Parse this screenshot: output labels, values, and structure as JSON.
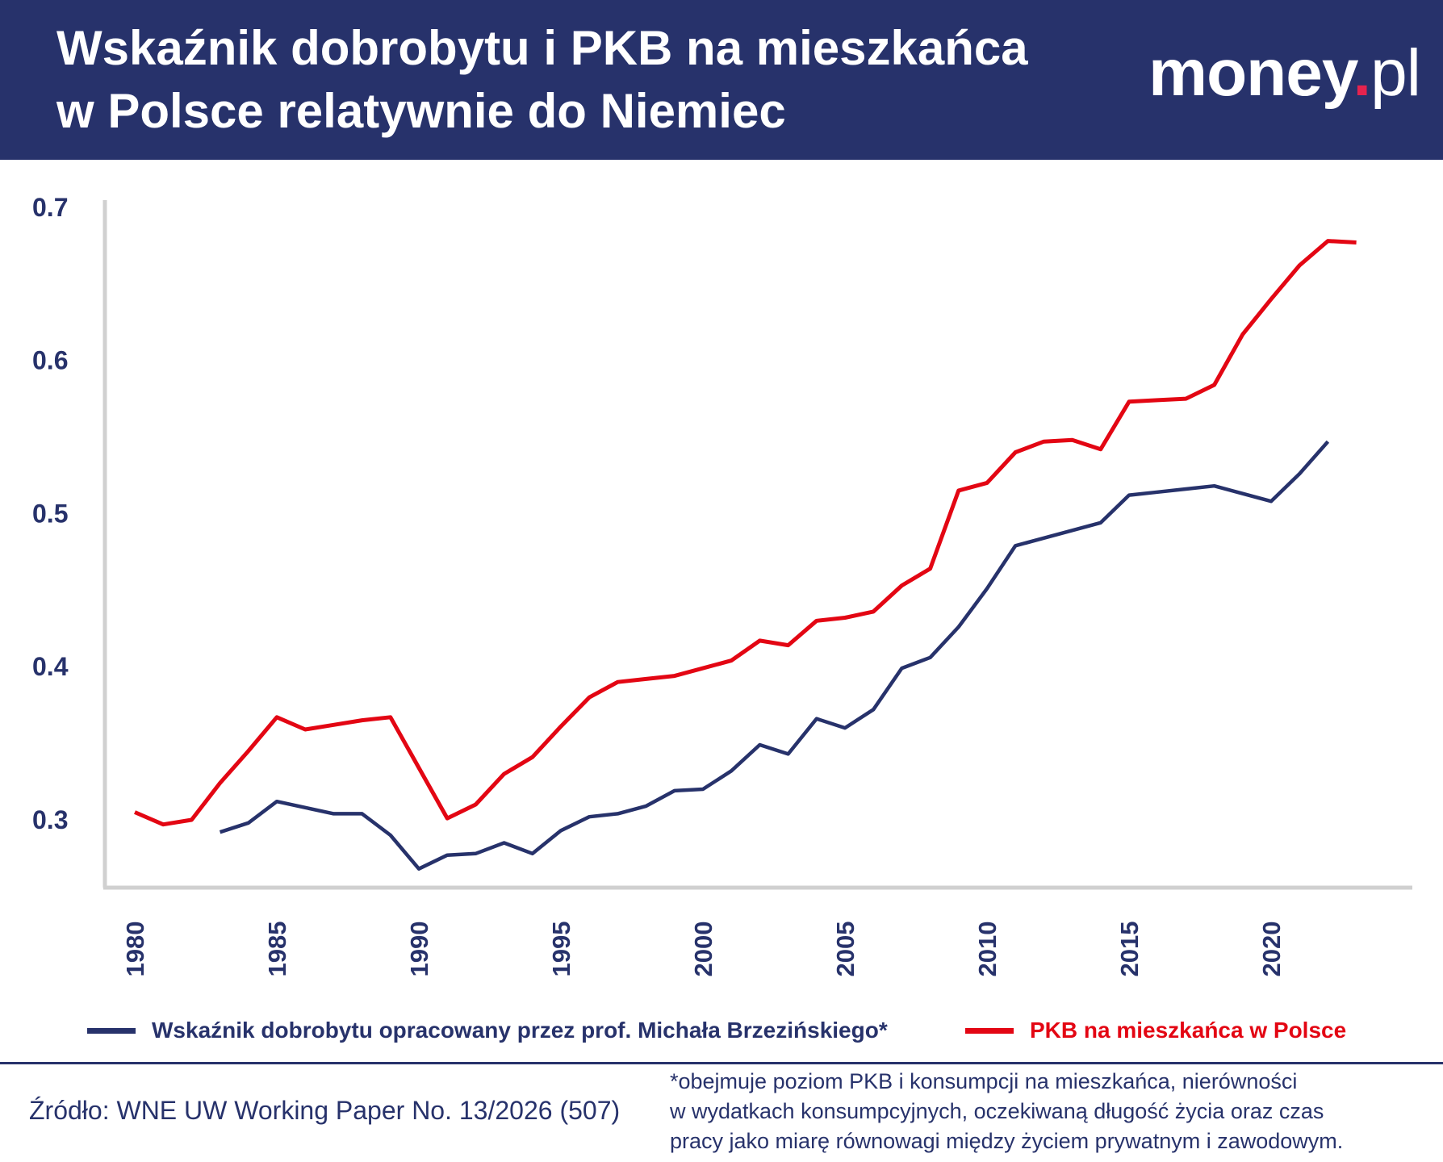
{
  "header": {
    "title_line1": "Wskaźnik dobrobytu i PKB na mieszkańca",
    "title_line2": "w Polsce relatywnie do Niemiec",
    "logo": {
      "part1": "money",
      "dot": ".",
      "part2": "pl"
    }
  },
  "colors": {
    "header_bg": "#27326b",
    "series_welfare": "#27326b",
    "series_gdp": "#e30613",
    "axis": "#d0d0d0",
    "logo_dot": "#e5234e"
  },
  "chart_data": {
    "type": "line",
    "title": "Wskaźnik dobrobytu i PKB na mieszkańca w Polsce relatywnie do Niemiec",
    "xlabel": "",
    "ylabel": "",
    "xlim": [
      1980,
      2023
    ],
    "ylim": [
      0.26,
      0.7
    ],
    "yticks": [
      0.3,
      0.4,
      0.5,
      0.6,
      0.7
    ],
    "ytick_labels": [
      "0.3",
      "0.4",
      "0.5",
      "0.6",
      "0.7"
    ],
    "xticks": [
      1980,
      1985,
      1990,
      1995,
      2000,
      2005,
      2010,
      2015,
      2020
    ],
    "xtick_labels": [
      "1980",
      "1985",
      "1990",
      "1995",
      "2000",
      "2005",
      "2010",
      "2015",
      "2020"
    ],
    "grid": false,
    "legend_position": "bottom",
    "series": [
      {
        "name": "Wskaźnik dobrobytu opracowany przez prof. Michała Brzezińskiego*",
        "color": "#27326b",
        "x": [
          1983,
          1984,
          1985,
          1986,
          1987,
          1988,
          1989,
          1990,
          1991,
          1992,
          1993,
          1994,
          1995,
          1996,
          1997,
          1998,
          1999,
          2000,
          2001,
          2002,
          2003,
          2004,
          2005,
          2006,
          2007,
          2008,
          2009,
          2010,
          2011,
          2012,
          2013,
          2014,
          2015,
          2016,
          2017,
          2018,
          2019,
          2020,
          2021,
          2022
        ],
        "y": [
          0.292,
          0.298,
          0.312,
          0.308,
          0.304,
          0.304,
          0.29,
          0.268,
          0.277,
          0.278,
          0.285,
          0.278,
          0.293,
          0.302,
          0.304,
          0.309,
          0.319,
          0.32,
          0.332,
          0.349,
          0.343,
          0.366,
          0.36,
          0.372,
          0.399,
          0.406,
          0.426,
          0.451,
          0.479,
          0.484,
          0.489,
          0.494,
          0.512,
          0.514,
          0.516,
          0.518,
          0.513,
          0.508,
          0.526,
          0.547
        ]
      },
      {
        "name": "PKB na mieszkańca w Polsce",
        "color": "#e30613",
        "x": [
          1980,
          1981,
          1982,
          1983,
          1984,
          1985,
          1986,
          1987,
          1988,
          1989,
          1990,
          1991,
          1992,
          1993,
          1994,
          1995,
          1996,
          1997,
          1998,
          1999,
          2000,
          2001,
          2002,
          2003,
          2004,
          2005,
          2006,
          2007,
          2008,
          2009,
          2010,
          2011,
          2012,
          2013,
          2014,
          2015,
          2016,
          2017,
          2018,
          2019,
          2020,
          2021,
          2022,
          2023
        ],
        "y": [
          0.305,
          0.297,
          0.3,
          0.324,
          0.345,
          0.367,
          0.359,
          0.362,
          0.365,
          0.367,
          0.334,
          0.301,
          0.31,
          0.33,
          0.341,
          0.361,
          0.38,
          0.39,
          0.392,
          0.394,
          0.399,
          0.404,
          0.417,
          0.414,
          0.43,
          0.432,
          0.436,
          0.453,
          0.464,
          0.515,
          0.52,
          0.54,
          0.547,
          0.548,
          0.542,
          0.573,
          0.574,
          0.575,
          0.584,
          0.617,
          0.64,
          0.662,
          0.678,
          0.677
        ]
      }
    ]
  },
  "legend": {
    "item1": "Wskaźnik dobrobytu opracowany przez prof. Michała Brzezińskiego*",
    "item2": "PKB na mieszkańca w Polsce"
  },
  "footer": {
    "source": "Źródło: WNE UW Working Paper No. 13/2026 (507)",
    "note_line1": "*obejmuje poziom PKB i konsumpcji na mieszkańca, nierówności",
    "note_line2": "w wydatkach konsumpcyjnych, oczekiwaną długość życia oraz czas",
    "note_line3": "pracy jako miarę równowagi między życiem prywatnym i zawodowym."
  }
}
